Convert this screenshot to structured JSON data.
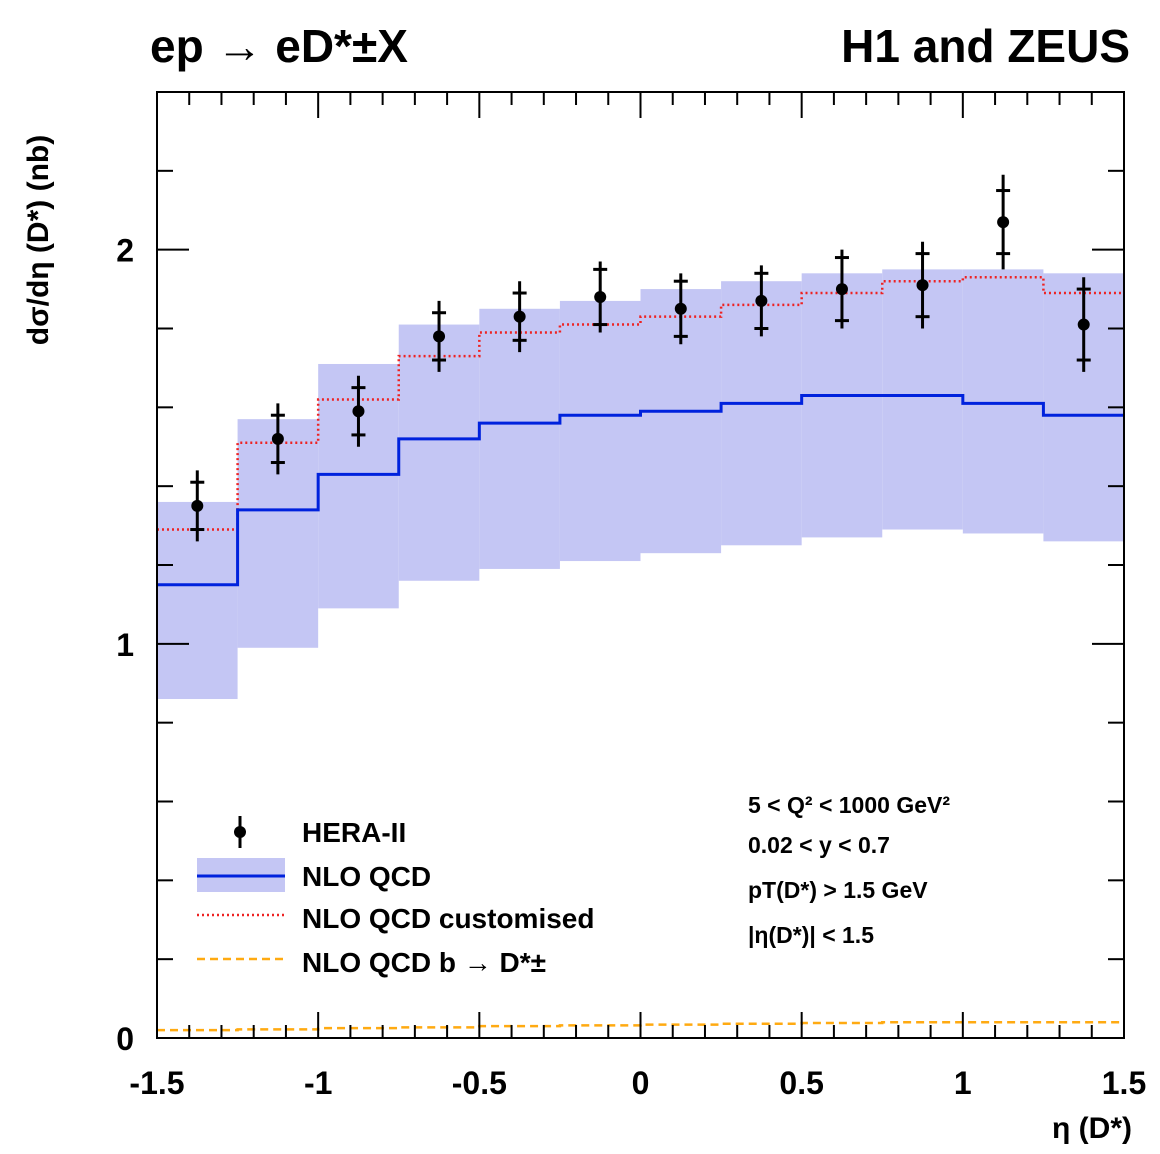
{
  "title_left": "ep → eD*±X",
  "title_right": "H1 and ZEUS",
  "cuts": [
    "5 < Q² < 1000 GeV²",
    "0.02 < y < 0.7",
    "pT(D*) > 1.5 GeV",
    "|η(D*)| < 1.5"
  ],
  "chart_data": {
    "type": "line",
    "xlabel": "η (D*)",
    "ylabel": "dσ/dη (D*) (nb)",
    "xlim": [
      -1.5,
      1.5
    ],
    "ylim": [
      0,
      2.4
    ],
    "x_ticks": [
      "-1.5",
      "-1",
      "-0.5",
      "0",
      "0.5",
      "1",
      "1.5"
    ],
    "y_ticks": [
      "0",
      "1",
      "2"
    ],
    "bin_edges": [
      -1.5,
      -1.25,
      -1.0,
      -0.75,
      -0.5,
      -0.25,
      0.0,
      0.25,
      0.5,
      0.75,
      1.0,
      1.25,
      1.5
    ],
    "data_points": {
      "name": "HERA-II",
      "x": [
        -1.375,
        -1.125,
        -0.875,
        -0.625,
        -0.375,
        -0.125,
        0.125,
        0.375,
        0.625,
        0.875,
        1.125,
        1.375
      ],
      "y": [
        1.35,
        1.52,
        1.59,
        1.78,
        1.83,
        1.88,
        1.85,
        1.87,
        1.9,
        1.91,
        2.07,
        1.81
      ],
      "err_stat": [
        0.06,
        0.06,
        0.06,
        0.06,
        0.06,
        0.07,
        0.07,
        0.07,
        0.08,
        0.08,
        0.08,
        0.09
      ],
      "err_tot": [
        0.09,
        0.09,
        0.09,
        0.09,
        0.09,
        0.09,
        0.09,
        0.09,
        0.1,
        0.11,
        0.12,
        0.12
      ]
    },
    "series": [
      {
        "name": "NLO QCD",
        "style": "band+line",
        "color": "#0022dd",
        "band_color": "#c4c6f4",
        "values": [
          1.15,
          1.34,
          1.43,
          1.52,
          1.56,
          1.58,
          1.59,
          1.61,
          1.63,
          1.63,
          1.61,
          1.58
        ],
        "band_low": [
          0.86,
          0.99,
          1.09,
          1.16,
          1.19,
          1.21,
          1.23,
          1.25,
          1.27,
          1.29,
          1.28,
          1.26
        ],
        "band_high": [
          1.36,
          1.57,
          1.71,
          1.81,
          1.85,
          1.87,
          1.9,
          1.92,
          1.94,
          1.95,
          1.95,
          1.94
        ]
      },
      {
        "name": "NLO QCD customised",
        "style": "dotted",
        "color": "#ee2222",
        "values": [
          1.29,
          1.51,
          1.62,
          1.73,
          1.79,
          1.81,
          1.83,
          1.86,
          1.89,
          1.92,
          1.93,
          1.89
        ]
      },
      {
        "name": "NLO QCD b → D*±",
        "style": "dashed",
        "color": "#ffaa11",
        "values": [
          0.02,
          0.022,
          0.025,
          0.027,
          0.03,
          0.032,
          0.034,
          0.036,
          0.038,
          0.04,
          0.04,
          0.04
        ]
      }
    ],
    "legend_position": "bottom-left"
  }
}
